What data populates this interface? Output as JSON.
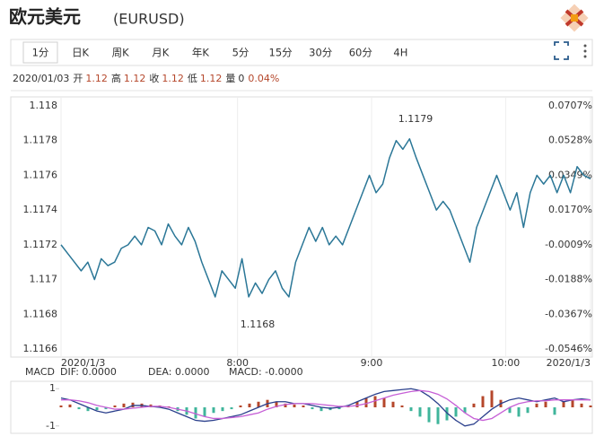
{
  "header": {
    "title": "欧元美元",
    "symbol": "(EURUSD)"
  },
  "tabs": [
    "1分",
    "日K",
    "周K",
    "月K",
    "年K",
    "5分",
    "15分",
    "30分",
    "60分",
    "4H"
  ],
  "active_tab": 0,
  "quote": {
    "date": "2020/01/03",
    "fields": [
      {
        "label": "开",
        "value": 1.12,
        "color": "#b5472b"
      },
      {
        "label": "高",
        "value": 1.12,
        "color": "#b5472b"
      },
      {
        "label": "收",
        "value": 1.12,
        "color": "#b5472b"
      },
      {
        "label": "低",
        "value": 1.12,
        "color": "#b5472b"
      },
      {
        "label": "量",
        "value": 0,
        "color": "#333333"
      }
    ],
    "change": "0.04%",
    "change_color": "#b5472b"
  },
  "chart_data": [
    {
      "type": "line",
      "x": [
        0,
        3,
        6,
        9,
        12,
        15,
        18,
        21,
        24,
        27,
        30,
        33,
        36,
        39,
        42,
        45,
        48,
        51,
        54,
        57,
        60,
        63,
        66,
        69,
        72,
        75,
        78,
        81,
        84,
        87,
        90,
        93,
        96,
        99,
        102,
        105,
        108,
        111,
        114,
        117,
        120,
        123,
        126,
        129,
        132,
        135,
        138,
        141,
        144,
        147,
        150,
        153,
        156,
        159,
        162,
        165,
        168,
        171,
        174,
        177,
        180,
        183,
        186,
        189,
        192,
        195,
        198,
        201,
        204,
        207,
        210,
        213,
        216,
        219,
        222,
        225,
        228,
        231,
        234,
        237
      ],
      "series": [
        {
          "color": "#2b7797",
          "values": [
            1.1172,
            1.11715,
            1.1171,
            1.11705,
            1.1171,
            1.117,
            1.11712,
            1.11708,
            1.1171,
            1.11718,
            1.1172,
            1.11725,
            1.1172,
            1.1173,
            1.11728,
            1.1172,
            1.11732,
            1.11725,
            1.1172,
            1.1173,
            1.11722,
            1.1171,
            1.117,
            1.1169,
            1.11705,
            1.117,
            1.11695,
            1.11712,
            1.1169,
            1.11698,
            1.11692,
            1.117,
            1.11705,
            1.11695,
            1.1169,
            1.1171,
            1.1172,
            1.1173,
            1.11722,
            1.1173,
            1.1172,
            1.11725,
            1.1172,
            1.1173,
            1.1174,
            1.1175,
            1.1176,
            1.1175,
            1.11755,
            1.1177,
            1.1178,
            1.11775,
            1.11781,
            1.1177,
            1.1176,
            1.1175,
            1.1174,
            1.11745,
            1.1174,
            1.1173,
            1.1172,
            1.1171,
            1.1173,
            1.1174,
            1.1175,
            1.1176,
            1.1175,
            1.1174,
            1.1175,
            1.1173,
            1.1175,
            1.1176,
            1.11755,
            1.1176,
            1.1175,
            1.1176,
            1.1175,
            1.11765,
            1.1176,
            1.11758
          ]
        }
      ],
      "xlim": [
        0,
        237
      ],
      "xticks": [
        {
          "value": 0,
          "label": "2020/1/3"
        },
        {
          "value": 79,
          "label": "8:00"
        },
        {
          "value": 139,
          "label": "9:00"
        },
        {
          "value": 199,
          "label": "10:00"
        },
        {
          "value": 237,
          "label": "2020/1/3"
        }
      ],
      "ylim": [
        1.1166,
        1.118
      ],
      "yticks": [
        1.118,
        1.1178,
        1.1176,
        1.1174,
        1.1172,
        1.117,
        1.1168,
        1.1166
      ],
      "y2lim": [
        -0.0546,
        0.0707
      ],
      "y2ticks": [
        {
          "value": 0.0707,
          "label": "0.0707%"
        },
        {
          "value": 0.0528,
          "label": "0.0528%"
        },
        {
          "value": 0.0349,
          "label": "0.0349%"
        },
        {
          "value": 0.017,
          "label": "0.0170%"
        },
        {
          "value": -0.0009,
          "label": "-0.0009%"
        },
        {
          "value": -0.0188,
          "label": "-0.0188%"
        },
        {
          "value": -0.0367,
          "label": "-0.0367%"
        },
        {
          "value": -0.0546,
          "label": "-0.0546%"
        }
      ],
      "y2tick_up_color": "#c0392b",
      "y2tick_down_color": "#2e9a3a",
      "annotations": [
        {
          "text": "1.1179"
        },
        {
          "text": "1.1168"
        }
      ]
    },
    {
      "type": "macd",
      "legend_title": "MACD",
      "legend": [
        {
          "text": "DIF: 0.0000",
          "color": "#5b74d1"
        },
        {
          "text": "DEA: 0.0000",
          "color": "#c65fd6"
        },
        {
          "text": "MACD: -0.0000",
          "color": "#b0553a"
        }
      ],
      "ylim": [
        -1.3,
        1.3
      ],
      "yticks": [
        1,
        -1
      ],
      "histogram": {
        "up_color": "#b5472b",
        "down_color": "#3fb59b",
        "values": [
          0.1,
          0.15,
          -0.1,
          -0.2,
          -0.15,
          -0.1,
          0.1,
          0.2,
          0.25,
          0.2,
          0.15,
          0.1,
          0.05,
          -0.2,
          -0.4,
          -0.6,
          -0.5,
          -0.3,
          -0.2,
          -0.1,
          0.1,
          0.2,
          0.3,
          0.4,
          0.3,
          0.2,
          0.15,
          0.1,
          -0.1,
          -0.2,
          -0.15,
          -0.1,
          0.1,
          0.3,
          0.5,
          0.6,
          0.5,
          0.3,
          0.1,
          -0.2,
          -0.5,
          -0.8,
          -0.9,
          -0.7,
          -0.5,
          -0.3,
          0.2,
          0.6,
          0.9,
          0.4,
          -0.3,
          -0.5,
          -0.3,
          0.2,
          0.3,
          -0.4,
          0.3,
          0.4,
          0.2,
          0.1
        ]
      },
      "dif": {
        "color": "#2a3f8c",
        "values": [
          0.5,
          0.4,
          0.2,
          0,
          -0.2,
          -0.3,
          -0.2,
          -0.1,
          0.1,
          0.1,
          0.05,
          0,
          -0.1,
          -0.3,
          -0.5,
          -0.7,
          -0.75,
          -0.7,
          -0.6,
          -0.5,
          -0.4,
          -0.2,
          0,
          0.2,
          0.3,
          0.3,
          0.2,
          0.2,
          0.1,
          0,
          -0.05,
          0,
          0.1,
          0.3,
          0.5,
          0.7,
          0.85,
          0.9,
          0.95,
          1.0,
          0.9,
          0.6,
          0.2,
          -0.3,
          -0.7,
          -1.0,
          -0.9,
          -0.5,
          -0.1,
          0.2,
          0.4,
          0.5,
          0.4,
          0.3,
          0.4,
          0.5,
          0.3,
          0.4,
          0.45,
          0.4
        ]
      },
      "dea": {
        "color": "#c65fd6",
        "values": [
          0.4,
          0.4,
          0.35,
          0.25,
          0.1,
          0,
          -0.1,
          -0.1,
          -0.05,
          0,
          0.05,
          0.05,
          0,
          -0.1,
          -0.2,
          -0.35,
          -0.5,
          -0.6,
          -0.6,
          -0.55,
          -0.5,
          -0.4,
          -0.3,
          -0.1,
          0.05,
          0.15,
          0.2,
          0.2,
          0.2,
          0.15,
          0.1,
          0.05,
          0.05,
          0.1,
          0.2,
          0.35,
          0.5,
          0.65,
          0.75,
          0.85,
          0.9,
          0.85,
          0.7,
          0.45,
          0.1,
          -0.3,
          -0.6,
          -0.7,
          -0.6,
          -0.3,
          0,
          0.2,
          0.3,
          0.35,
          0.35,
          0.4,
          0.4,
          0.4,
          0.4,
          0.4
        ]
      }
    }
  ]
}
